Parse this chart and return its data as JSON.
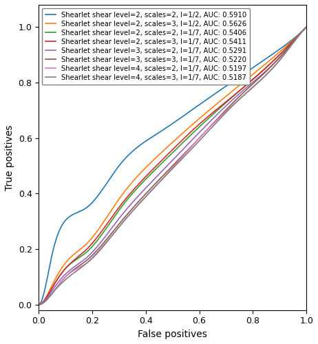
{
  "curves": [
    {
      "label": "Shearlet shear level=2, scales=2, l=1/2, AUC: 0.5910",
      "color": "#1f77b4",
      "auc": 0.591,
      "ctrl_pts": [
        [
          0.0,
          0.0
        ],
        [
          0.05,
          0.18
        ],
        [
          0.12,
          0.32
        ],
        [
          0.18,
          0.35
        ],
        [
          0.3,
          0.5
        ],
        [
          0.45,
          0.62
        ],
        [
          0.6,
          0.72
        ],
        [
          0.75,
          0.82
        ],
        [
          0.9,
          0.92
        ],
        [
          1.0,
          1.0
        ]
      ]
    },
    {
      "label": "Shearlet shear level=2, scales=3, l=1/2, AUC: 0.5626",
      "color": "#ff7f0e",
      "auc": 0.5626,
      "ctrl_pts": [
        [
          0.0,
          0.0
        ],
        [
          0.05,
          0.07
        ],
        [
          0.1,
          0.15
        ],
        [
          0.18,
          0.22
        ],
        [
          0.3,
          0.38
        ],
        [
          0.45,
          0.54
        ],
        [
          0.6,
          0.67
        ],
        [
          0.75,
          0.79
        ],
        [
          0.9,
          0.91
        ],
        [
          1.0,
          1.0
        ]
      ]
    },
    {
      "label": "Shearlet shear level=2, scales=2, l=1/7, AUC: 0.5406",
      "color": "#2ca02c",
      "auc": 0.5406,
      "ctrl_pts": [
        [
          0.0,
          0.0
        ],
        [
          0.05,
          0.06
        ],
        [
          0.1,
          0.13
        ],
        [
          0.18,
          0.19
        ],
        [
          0.3,
          0.34
        ],
        [
          0.45,
          0.5
        ],
        [
          0.6,
          0.64
        ],
        [
          0.75,
          0.77
        ],
        [
          0.9,
          0.9
        ],
        [
          1.0,
          1.0
        ]
      ]
    },
    {
      "label": "Shearlet shear level=2, scales=3, l=1/7, AUC: 0.5411",
      "color": "#d62728",
      "auc": 0.5411,
      "ctrl_pts": [
        [
          0.0,
          0.0
        ],
        [
          0.05,
          0.06
        ],
        [
          0.1,
          0.13
        ],
        [
          0.18,
          0.2
        ],
        [
          0.3,
          0.35
        ],
        [
          0.45,
          0.51
        ],
        [
          0.6,
          0.65
        ],
        [
          0.75,
          0.77
        ],
        [
          0.9,
          0.9
        ],
        [
          1.0,
          1.0
        ]
      ]
    },
    {
      "label": "Shearlet shear level=3, scales=2, l=1/7, AUC: 0.5291",
      "color": "#9467bd",
      "auc": 0.5291,
      "ctrl_pts": [
        [
          0.0,
          0.0
        ],
        [
          0.05,
          0.05
        ],
        [
          0.1,
          0.11
        ],
        [
          0.18,
          0.17
        ],
        [
          0.3,
          0.31
        ],
        [
          0.45,
          0.47
        ],
        [
          0.6,
          0.62
        ],
        [
          0.75,
          0.76
        ],
        [
          0.9,
          0.89
        ],
        [
          1.0,
          1.0
        ]
      ]
    },
    {
      "label": "Shearlet shear level=3, scales=3, l=1/7, AUC: 0.5220",
      "color": "#8c564b",
      "auc": 0.522,
      "ctrl_pts": [
        [
          0.0,
          0.0
        ],
        [
          0.05,
          0.04
        ],
        [
          0.1,
          0.1
        ],
        [
          0.18,
          0.16
        ],
        [
          0.3,
          0.29
        ],
        [
          0.45,
          0.45
        ],
        [
          0.6,
          0.6
        ],
        [
          0.75,
          0.75
        ],
        [
          0.9,
          0.89
        ],
        [
          1.0,
          1.0
        ]
      ]
    },
    {
      "label": "Shearlet shear level=4, scales=2, l=1/7, AUC: 0.5197",
      "color": "#e377c2",
      "auc": 0.5197,
      "ctrl_pts": [
        [
          0.0,
          0.0
        ],
        [
          0.05,
          0.04
        ],
        [
          0.1,
          0.1
        ],
        [
          0.18,
          0.15
        ],
        [
          0.3,
          0.28
        ],
        [
          0.45,
          0.44
        ],
        [
          0.6,
          0.6
        ],
        [
          0.75,
          0.74
        ],
        [
          0.9,
          0.88
        ],
        [
          1.0,
          1.0
        ]
      ]
    },
    {
      "label": "Shearlet shear level=4, scales=3, l=1/7, AUC: 0.5187",
      "color": "#7f7f7f",
      "auc": 0.5187,
      "ctrl_pts": [
        [
          0.0,
          0.0
        ],
        [
          0.05,
          0.04
        ],
        [
          0.1,
          0.09
        ],
        [
          0.18,
          0.15
        ],
        [
          0.3,
          0.28
        ],
        [
          0.45,
          0.44
        ],
        [
          0.6,
          0.59
        ],
        [
          0.75,
          0.74
        ],
        [
          0.9,
          0.88
        ],
        [
          1.0,
          1.0
        ]
      ]
    }
  ],
  "xlabel": "False positives",
  "ylabel": "True positives",
  "xlim": [
    0.0,
    1.0
  ],
  "ylim": [
    -0.02,
    1.08
  ],
  "xticks": [
    0.0,
    0.2,
    0.4,
    0.6,
    0.8,
    1.0
  ],
  "yticks": [
    0.0,
    0.2,
    0.4,
    0.6,
    0.8,
    1.0
  ],
  "legend_fontsize": 7.2,
  "legend_loc": "upper left",
  "figsize": [
    4.62,
    5.0
  ],
  "dpi": 100
}
